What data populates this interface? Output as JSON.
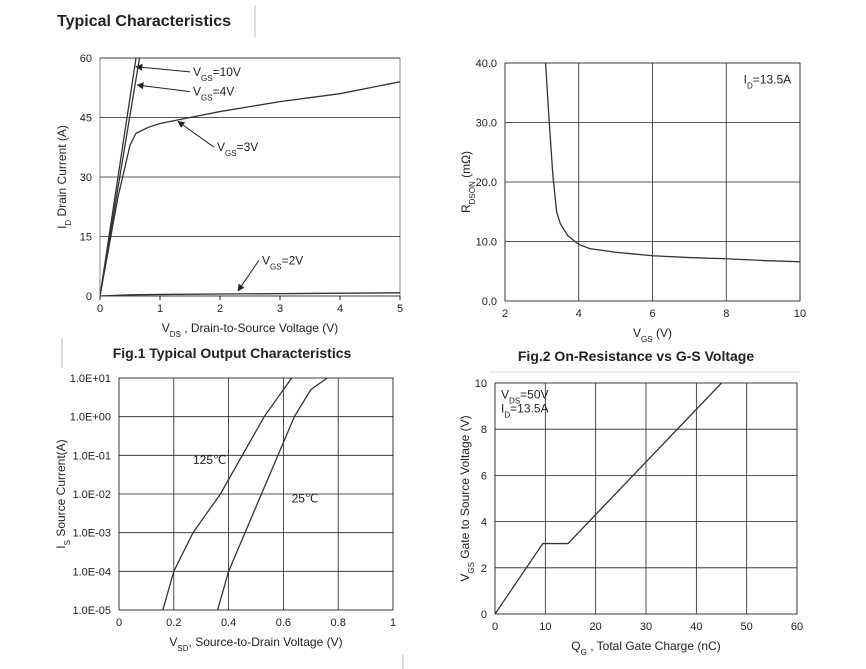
{
  "header": {
    "title": "Typical Characteristics"
  },
  "chart_data": [
    {
      "type": "line",
      "caption": "Fig.1 Typical Output Characteristics",
      "xlabel": [
        "V",
        "DS",
        " , Drain-to-Source Voltage (V)"
      ],
      "ylabel": [
        "I",
        "D",
        " Drain Current (A)"
      ],
      "xlim": [
        0,
        5
      ],
      "ylim": [
        0,
        60
      ],
      "xticks": [
        0,
        1,
        2,
        3,
        4,
        5
      ],
      "yticks": [
        0,
        15,
        30,
        45,
        60
      ],
      "grid": "y",
      "color": "#333333",
      "series": [
        {
          "label": [
            "V",
            "GS",
            "=10V"
          ],
          "x": [
            0,
            0.62
          ],
          "values": [
            0,
            62
          ]
        },
        {
          "label": [
            "V",
            "GS",
            "=4V"
          ],
          "x": [
            0,
            0.68
          ],
          "values": [
            0,
            62
          ]
        },
        {
          "label": [
            "V",
            "GS",
            "=3V"
          ],
          "x": [
            0,
            0.3,
            0.5,
            0.6,
            0.8,
            1,
            1.5,
            2,
            3,
            4,
            5
          ],
          "values": [
            0,
            25,
            38,
            41,
            42.5,
            43.5,
            45,
            46.5,
            49,
            51,
            54
          ]
        },
        {
          "label": [
            "V",
            "GS",
            "=2V"
          ],
          "x": [
            0,
            0.5,
            1,
            5
          ],
          "values": [
            0,
            0.3,
            0.4,
            0.8
          ]
        }
      ]
    },
    {
      "type": "line",
      "caption": "Fig.2 On-Resistance vs G-S Voltage",
      "xlabel": [
        "V",
        "GS",
        " (V)"
      ],
      "ylabel": [
        "R",
        "DSON",
        " (mΩ)"
      ],
      "xlim": [
        2,
        10
      ],
      "ylim": [
        0,
        40
      ],
      "xticks": [
        2,
        4,
        6,
        8,
        10
      ],
      "yticks": [
        {
          "value": 0,
          "label": "0.0"
        },
        {
          "value": 10,
          "label": "10.0"
        },
        {
          "value": 20,
          "label": "20.0"
        },
        {
          "value": 30,
          "label": "30.0"
        },
        {
          "value": 40,
          "label": "40.0"
        }
      ],
      "grid": "both",
      "color": "#333333",
      "annotations": [
        [
          "I",
          "D",
          "=13.5A"
        ]
      ],
      "series": [
        {
          "x": [
            3.1,
            3.2,
            3.3,
            3.4,
            3.5,
            3.7,
            4,
            4.3,
            5,
            6,
            7,
            8,
            9,
            10
          ],
          "values": [
            40,
            30,
            21,
            15,
            13,
            11,
            9.5,
            8.8,
            8.2,
            7.6,
            7.3,
            7.1,
            6.8,
            6.6
          ]
        }
      ]
    },
    {
      "type": "line",
      "ylog": true,
      "xlabel": [
        "V",
        "SD",
        ", Source-to-Drain Voltage (V)"
      ],
      "ylabel": [
        "I",
        "S",
        " Source Current(A)"
      ],
      "xlim": [
        0,
        1
      ],
      "ylim": [
        1e-05,
        10
      ],
      "xticks": [
        0,
        0.2,
        0.4,
        0.6,
        0.8,
        1
      ],
      "yticks": [
        {
          "value": 1e-05,
          "label": "1.0E-05"
        },
        {
          "value": 0.0001,
          "label": "1.0E-04"
        },
        {
          "value": 0.001,
          "label": "1.0E-03"
        },
        {
          "value": 0.01,
          "label": "1.0E-02"
        },
        {
          "value": 0.1,
          "label": "1.0E-01"
        },
        {
          "value": 1,
          "label": "1.0E+00"
        },
        {
          "value": 10,
          "label": "1.0E+01"
        }
      ],
      "grid": "both",
      "color": "#333333",
      "series": [
        {
          "label": [
            "125℃"
          ],
          "x": [
            0.16,
            0.2,
            0.27,
            0.37,
            0.45,
            0.53,
            0.6,
            0.63
          ],
          "values": [
            1e-05,
            0.0001,
            0.001,
            0.01,
            0.1,
            1,
            5,
            10
          ]
        },
        {
          "label": [
            "25℃"
          ],
          "x": [
            0.36,
            0.4,
            0.46,
            0.52,
            0.58,
            0.64,
            0.7,
            0.76
          ],
          "values": [
            1e-05,
            0.0001,
            0.001,
            0.01,
            0.1,
            1,
            5,
            10
          ]
        }
      ]
    },
    {
      "type": "line",
      "xlabel": [
        "Q",
        "G",
        " , Total Gate Charge (nC)"
      ],
      "ylabel": [
        "V",
        "GS",
        "   Gate to Source Voltage (V)"
      ],
      "xlim": [
        0,
        60
      ],
      "ylim": [
        0,
        10
      ],
      "xticks": [
        0,
        10,
        20,
        30,
        40,
        50,
        60
      ],
      "yticks": [
        0,
        2,
        4,
        6,
        8,
        10
      ],
      "grid": "both",
      "color": "#333333",
      "annotations": [
        [
          "V",
          "DS",
          "=50V"
        ],
        [
          "I",
          "D",
          "=13.5A"
        ]
      ],
      "series": [
        {
          "x": [
            0,
            9.5,
            14.5,
            45
          ],
          "values": [
            0,
            3.05,
            3.05,
            10
          ]
        }
      ]
    }
  ]
}
